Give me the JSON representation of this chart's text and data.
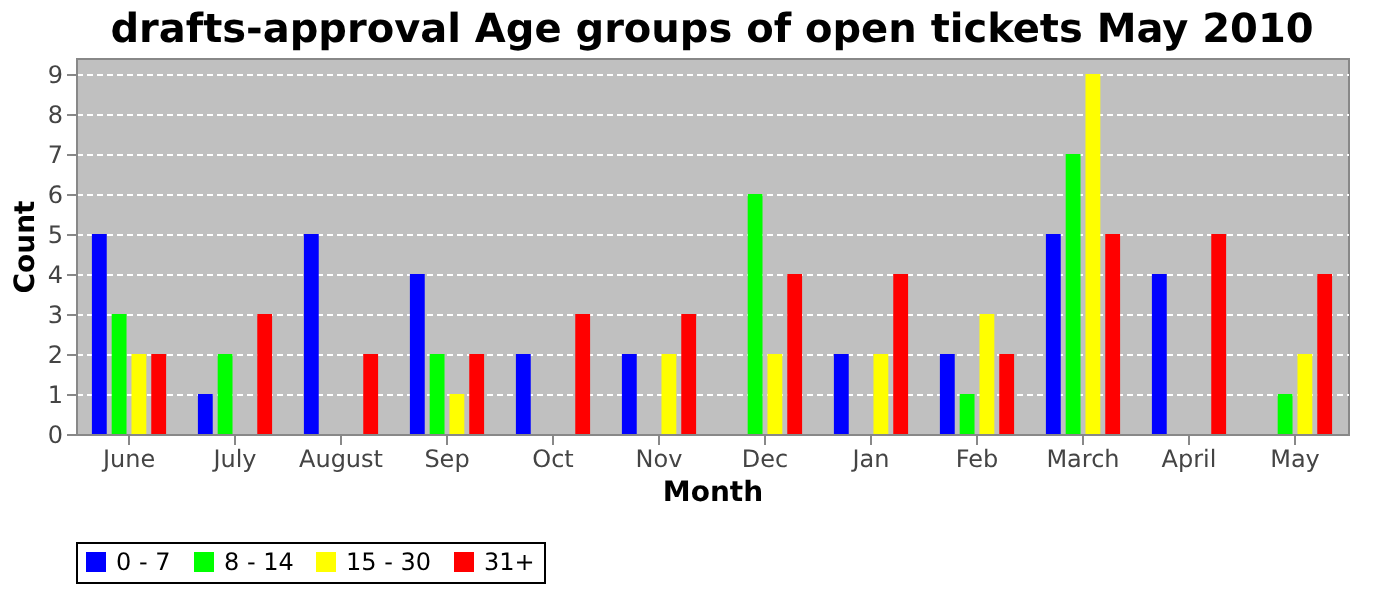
{
  "chart_data": {
    "type": "bar",
    "title": "drafts-approval Age groups of open tickets May 2010",
    "xlabel": "Month",
    "ylabel": "Count",
    "categories": [
      "June",
      "July",
      "August",
      "Sep",
      "Oct",
      "Nov",
      "Dec",
      "Jan",
      "Feb",
      "March",
      "April",
      "May"
    ],
    "series": [
      {
        "name": "0 - 7",
        "color": "#0000ff",
        "values": [
          5,
          1,
          5,
          4,
          2,
          2,
          null,
          2,
          2,
          5,
          4,
          null
        ]
      },
      {
        "name": "8 - 14",
        "color": "#00ff00",
        "values": [
          3,
          2,
          null,
          2,
          null,
          null,
          6,
          null,
          1,
          7,
          null,
          1
        ]
      },
      {
        "name": "15 - 30",
        "color": "#ffff00",
        "values": [
          2,
          null,
          null,
          1,
          null,
          2,
          2,
          2,
          3,
          9,
          null,
          2
        ]
      },
      {
        "name": "31+",
        "color": "#ff0000",
        "values": [
          2,
          3,
          2,
          2,
          3,
          3,
          4,
          4,
          2,
          5,
          5,
          4
        ]
      }
    ],
    "ylim": [
      0,
      9.4
    ],
    "yticks": [
      0,
      1,
      2,
      3,
      4,
      5,
      6,
      7,
      8,
      9
    ],
    "grid": "y",
    "legend": "bottom"
  }
}
